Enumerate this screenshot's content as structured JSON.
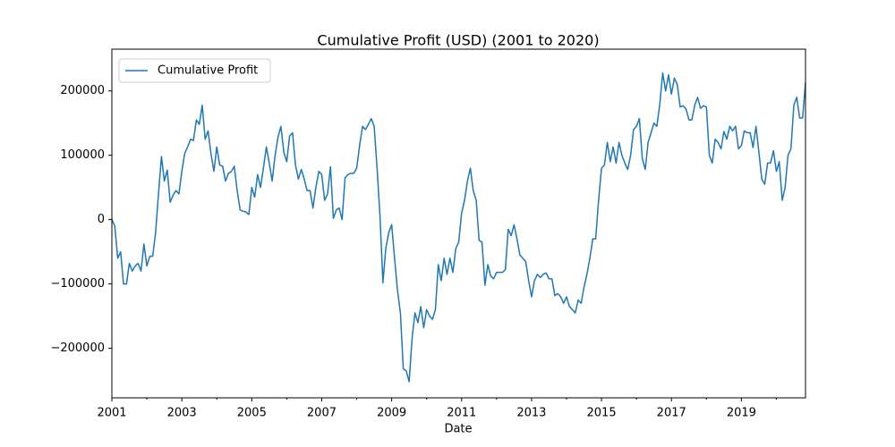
{
  "chart_data": {
    "type": "line",
    "title": "Cumulative Profit (USD) (2001 to 2020)",
    "xlabel": "Date",
    "x": [
      2001,
      2001.083,
      2001.167,
      2001.25,
      2001.333,
      2001.417,
      2001.5,
      2001.583,
      2001.667,
      2001.75,
      2001.833,
      2001.917,
      2002,
      2002.083,
      2002.167,
      2002.25,
      2002.333,
      2002.417,
      2002.5,
      2002.583,
      2002.667,
      2002.75,
      2002.833,
      2002.917,
      2003,
      2003.083,
      2003.167,
      2003.25,
      2003.333,
      2003.417,
      2003.5,
      2003.583,
      2003.667,
      2003.75,
      2003.833,
      2003.917,
      2004,
      2004.083,
      2004.167,
      2004.25,
      2004.333,
      2004.417,
      2004.5,
      2004.583,
      2004.667,
      2004.75,
      2004.833,
      2004.917,
      2005,
      2005.083,
      2005.167,
      2005.25,
      2005.333,
      2005.417,
      2005.5,
      2005.583,
      2005.667,
      2005.75,
      2005.833,
      2005.917,
      2006,
      2006.083,
      2006.167,
      2006.25,
      2006.333,
      2006.417,
      2006.5,
      2006.583,
      2006.667,
      2006.75,
      2006.833,
      2006.917,
      2007,
      2007.083,
      2007.167,
      2007.25,
      2007.333,
      2007.417,
      2007.5,
      2007.583,
      2007.667,
      2007.75,
      2007.833,
      2007.917,
      2008,
      2008.083,
      2008.167,
      2008.25,
      2008.333,
      2008.417,
      2008.5,
      2008.583,
      2008.667,
      2008.75,
      2008.833,
      2008.917,
      2009,
      2009.083,
      2009.167,
      2009.25,
      2009.333,
      2009.417,
      2009.5,
      2009.583,
      2009.667,
      2009.75,
      2009.833,
      2009.917,
      2010,
      2010.083,
      2010.167,
      2010.25,
      2010.333,
      2010.417,
      2010.5,
      2010.583,
      2010.667,
      2010.75,
      2010.833,
      2010.917,
      2011,
      2011.083,
      2011.167,
      2011.25,
      2011.333,
      2011.417,
      2011.5,
      2011.583,
      2011.667,
      2011.75,
      2011.833,
      2011.917,
      2012,
      2012.083,
      2012.167,
      2012.25,
      2012.333,
      2012.417,
      2012.5,
      2012.583,
      2012.667,
      2012.75,
      2012.833,
      2012.917,
      2013,
      2013.083,
      2013.167,
      2013.25,
      2013.333,
      2013.417,
      2013.5,
      2013.583,
      2013.667,
      2013.75,
      2013.833,
      2013.917,
      2014,
      2014.083,
      2014.167,
      2014.25,
      2014.333,
      2014.417,
      2014.5,
      2014.583,
      2014.667,
      2014.75,
      2014.833,
      2014.917,
      2015,
      2015.083,
      2015.167,
      2015.25,
      2015.333,
      2015.417,
      2015.5,
      2015.583,
      2015.667,
      2015.75,
      2015.833,
      2015.917,
      2016,
      2016.083,
      2016.167,
      2016.25,
      2016.333,
      2016.417,
      2016.5,
      2016.583,
      2016.667,
      2016.75,
      2016.833,
      2016.917,
      2017,
      2017.083,
      2017.167,
      2017.25,
      2017.333,
      2017.417,
      2017.5,
      2017.583,
      2017.667,
      2017.75,
      2017.833,
      2017.917,
      2018,
      2018.083,
      2018.167,
      2018.25,
      2018.333,
      2018.417,
      2018.5,
      2018.583,
      2018.667,
      2018.75,
      2018.833,
      2018.917,
      2019,
      2019.083,
      2019.167,
      2019.25,
      2019.333,
      2019.417,
      2019.5,
      2019.583,
      2019.667,
      2019.75,
      2019.833,
      2019.917,
      2020,
      2020.083,
      2020.167,
      2020.25,
      2020.333,
      2020.417,
      2020.5,
      2020.583,
      2020.667,
      2020.75,
      2020.833
    ],
    "series": [
      {
        "name": "Cumulative Profit",
        "color": "#1f77b4",
        "values": [
          0,
          -10000,
          -60000,
          -50000,
          -100000,
          -100000,
          -68000,
          -80000,
          -72000,
          -68000,
          -80000,
          -38000,
          -72000,
          -57000,
          -57000,
          -20000,
          40000,
          98000,
          60000,
          77000,
          27000,
          38000,
          45000,
          40000,
          75000,
          103000,
          113000,
          125000,
          123000,
          155000,
          148000,
          178000,
          125000,
          138000,
          103000,
          75000,
          113000,
          85000,
          83000,
          60000,
          72000,
          75000,
          83000,
          45000,
          15000,
          13000,
          12000,
          8000,
          50000,
          35000,
          70000,
          50000,
          80000,
          113000,
          88000,
          60000,
          100000,
          128000,
          145000,
          105000,
          90000,
          130000,
          135000,
          85000,
          63000,
          78000,
          63000,
          45000,
          45000,
          18000,
          50000,
          75000,
          70000,
          30000,
          40000,
          82000,
          2000,
          15000,
          18000,
          0,
          65000,
          70000,
          72000,
          72000,
          80000,
          115000,
          145000,
          140000,
          148000,
          157000,
          145000,
          80000,
          5000,
          -98000,
          -45000,
          -20000,
          -8000,
          -60000,
          -110000,
          -145000,
          -232000,
          -235000,
          -252000,
          -185000,
          -145000,
          -160000,
          -135000,
          -168000,
          -140000,
          -150000,
          -155000,
          -140000,
          -70000,
          -95000,
          -60000,
          -85000,
          -60000,
          -82000,
          -45000,
          -35000,
          10000,
          30000,
          60000,
          80000,
          45000,
          30000,
          -32000,
          -35000,
          -102000,
          -70000,
          -88000,
          -92000,
          -82000,
          -82000,
          -82000,
          -78000,
          -15000,
          -25000,
          -8000,
          -30000,
          -55000,
          -60000,
          -65000,
          -95000,
          -120000,
          -95000,
          -85000,
          -90000,
          -85000,
          -83000,
          -92000,
          -92000,
          -118000,
          -115000,
          -120000,
          -130000,
          -120000,
          -135000,
          -140000,
          -145000,
          -125000,
          -130000,
          -105000,
          -85000,
          -60000,
          -30000,
          -30000,
          30000,
          80000,
          85000,
          120000,
          90000,
          113000,
          88000,
          120000,
          100000,
          88000,
          78000,
          100000,
          140000,
          145000,
          157000,
          95000,
          78000,
          120000,
          135000,
          150000,
          145000,
          180000,
          228000,
          200000,
          225000,
          195000,
          220000,
          210000,
          175000,
          177000,
          172000,
          155000,
          155000,
          178000,
          190000,
          173000,
          177000,
          175000,
          100000,
          88000,
          125000,
          120000,
          110000,
          137000,
          125000,
          145000,
          138000,
          145000,
          110000,
          115000,
          138000,
          135000,
          135000,
          112000,
          145000,
          105000,
          63000,
          55000,
          88000,
          88000,
          107000,
          75000,
          90000,
          30000,
          50000,
          100000,
          110000,
          178000,
          190000,
          158000,
          158000,
          213000
        ]
      }
    ],
    "xlim": [
      2001,
      2020.833
    ],
    "xticks": [
      2001,
      2003,
      2005,
      2007,
      2009,
      2011,
      2013,
      2015,
      2017,
      2019
    ],
    "xminorticks": [
      2002,
      2004,
      2006,
      2008,
      2010,
      2012,
      2014,
      2016,
      2018,
      2020
    ],
    "ylim": [
      -277000,
      258000
    ],
    "yticks": [
      {
        "value": -200000,
        "label": "−200000"
      },
      {
        "value": -100000,
        "label": "−100000"
      },
      0,
      100000,
      200000
    ],
    "legend": "upper left"
  }
}
